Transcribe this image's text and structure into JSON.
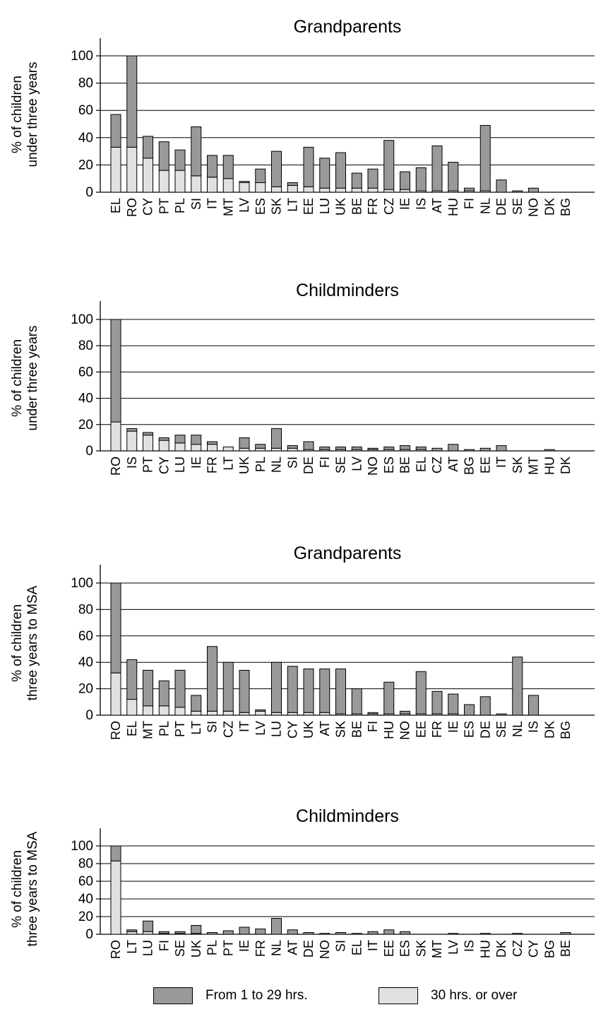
{
  "colors": {
    "series_1_29": "#999999",
    "series_30_over": "#e1e1e1",
    "axis": "#000000",
    "grid": "#000000"
  },
  "legend": {
    "items": [
      {
        "label": "From 1 to 29 hrs.",
        "color": "#999999"
      },
      {
        "label": "30 hrs. or over",
        "color": "#e1e1e1"
      }
    ]
  },
  "chart_data": [
    {
      "type": "bar",
      "stacked": true,
      "title": "Grandparents",
      "ylabel": [
        "% of children",
        "under three years"
      ],
      "yticks": [
        0,
        20,
        40,
        60,
        80,
        100
      ],
      "ylim": [
        0,
        100
      ],
      "grid": true,
      "categories": [
        "EL",
        "RO",
        "CY",
        "PT",
        "PL",
        "SI",
        "IT",
        "MT",
        "LV",
        "ES",
        "SK",
        "LT",
        "EE",
        "LU",
        "UK",
        "BE",
        "FR",
        "CZ",
        "IE",
        "IS",
        "AT",
        "HU",
        "FI",
        "NL",
        "DE",
        "SE",
        "NO",
        "DK",
        "BG"
      ],
      "series": [
        {
          "name": "30 hrs. or over",
          "color": "#e1e1e1",
          "values": [
            33,
            33,
            25,
            16,
            16,
            12,
            11,
            10,
            7,
            7,
            4,
            5,
            4,
            3,
            3,
            3,
            3,
            2,
            2,
            1,
            1,
            1,
            1,
            1,
            0,
            0,
            0,
            0,
            0
          ]
        },
        {
          "name": "From 1 to 29 hrs.",
          "color": "#999999",
          "values": [
            24,
            67,
            16,
            21,
            15,
            36,
            16,
            17,
            1,
            10,
            26,
            2,
            29,
            22,
            26,
            11,
            14,
            36,
            13,
            17,
            33,
            21,
            2,
            48,
            9,
            1,
            3,
            0,
            0
          ]
        }
      ]
    },
    {
      "type": "bar",
      "stacked": true,
      "title": "Childminders",
      "ylabel": [
        "% of children",
        "under three years"
      ],
      "yticks": [
        0,
        20,
        40,
        60,
        80,
        100
      ],
      "ylim": [
        0,
        100
      ],
      "grid": true,
      "categories": [
        "RO",
        "IS",
        "PT",
        "CY",
        "LU",
        "IE",
        "FR",
        "LT",
        "UK",
        "PL",
        "NL",
        "SI",
        "DE",
        "FI",
        "SE",
        "LV",
        "NO",
        "ES",
        "BE",
        "EL",
        "CZ",
        "AT",
        "BG",
        "EE",
        "IT",
        "SK",
        "MT",
        "HU",
        "DK"
      ],
      "series": [
        {
          "name": "30 hrs. or over",
          "color": "#e1e1e1",
          "values": [
            22,
            15,
            12,
            8,
            6,
            5,
            5,
            3,
            2,
            2,
            2,
            2,
            1,
            1,
            1,
            1,
            1,
            1,
            1,
            1,
            0,
            0,
            0,
            0,
            0,
            0,
            0,
            0,
            0
          ]
        },
        {
          "name": "From 1 to 29 hrs.",
          "color": "#999999",
          "values": [
            78,
            2,
            2,
            2,
            6,
            7,
            2,
            0,
            8,
            3,
            15,
            2,
            6,
            2,
            2,
            2,
            1,
            2,
            3,
            2,
            2,
            5,
            1,
            2,
            4,
            0,
            0,
            1,
            0
          ]
        }
      ]
    },
    {
      "type": "bar",
      "stacked": true,
      "title": "Grandparents",
      "ylabel": [
        "% of children",
        "three years to MSA"
      ],
      "yticks": [
        0,
        20,
        40,
        60,
        80,
        100
      ],
      "ylim": [
        0,
        100
      ],
      "grid": true,
      "categories": [
        "RO",
        "EL",
        "MT",
        "PL",
        "PT",
        "LT",
        "SI",
        "CZ",
        "IT",
        "LV",
        "LU",
        "CY",
        "UK",
        "AT",
        "SK",
        "BE",
        "FI",
        "HU",
        "NO",
        "EE",
        "FR",
        "IE",
        "ES",
        "DE",
        "SE",
        "NL",
        "IS",
        "DK",
        "BG"
      ],
      "series": [
        {
          "name": "30 hrs. or over",
          "color": "#e1e1e1",
          "values": [
            32,
            12,
            7,
            7,
            6,
            3,
            3,
            3,
            2,
            3,
            2,
            2,
            2,
            2,
            1,
            1,
            1,
            1,
            1,
            1,
            1,
            1,
            0,
            0,
            0,
            0,
            0,
            0,
            0
          ]
        },
        {
          "name": "From 1 to 29 hrs.",
          "color": "#999999",
          "values": [
            68,
            30,
            27,
            19,
            28,
            12,
            49,
            37,
            32,
            1,
            38,
            35,
            33,
            33,
            34,
            19,
            1,
            24,
            2,
            32,
            17,
            15,
            8,
            14,
            1,
            44,
            15,
            0,
            0
          ]
        }
      ]
    },
    {
      "type": "bar",
      "stacked": true,
      "title": "Childminders",
      "ylabel": [
        "% of children",
        "three years to MSA"
      ],
      "yticks": [
        0,
        20,
        40,
        60,
        80,
        100
      ],
      "ylim": [
        0,
        100
      ],
      "grid": true,
      "categories": [
        "RO",
        "LT",
        "LU",
        "FI",
        "SE",
        "UK",
        "PL",
        "PT",
        "IE",
        "FR",
        "NL",
        "AT",
        "DE",
        "NO",
        "SI",
        "EL",
        "IT",
        "EE",
        "ES",
        "SK",
        "MT",
        "LV",
        "IS",
        "HU",
        "DK",
        "CZ",
        "CY",
        "BG",
        "BE"
      ],
      "series": [
        {
          "name": "30 hrs. or over",
          "color": "#e1e1e1",
          "values": [
            83,
            3,
            3,
            1,
            1,
            1,
            0,
            0,
            0,
            0,
            0,
            0,
            0,
            0,
            0,
            0,
            0,
            0,
            0,
            0,
            0,
            0,
            0,
            0,
            0,
            0,
            0,
            0,
            0
          ]
        },
        {
          "name": "From 1 to 29 hrs.",
          "color": "#999999",
          "values": [
            17,
            2,
            12,
            2,
            2,
            9,
            2,
            4,
            8,
            6,
            18,
            5,
            2,
            1,
            2,
            1,
            3,
            5,
            3,
            0,
            0,
            1,
            0,
            1,
            0,
            1,
            0,
            0,
            2
          ]
        }
      ]
    }
  ]
}
